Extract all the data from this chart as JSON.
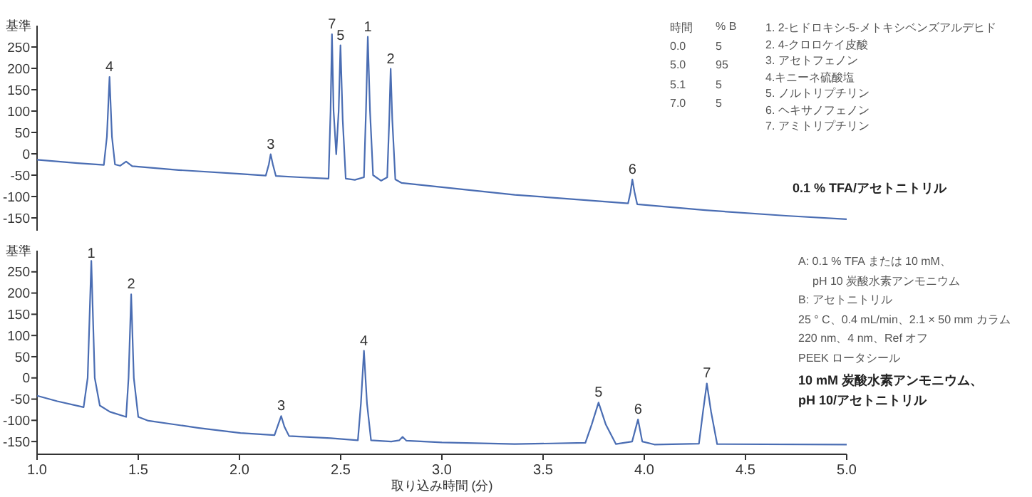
{
  "chart_data": [
    {
      "type": "line",
      "title": "0.1 % TFA/アセトニトリル",
      "ylabel": "基準",
      "xlim": [
        1,
        5
      ],
      "ylim": [
        -180,
        300
      ],
      "yticks": [
        250,
        200,
        150,
        100,
        50,
        0,
        -50,
        -100,
        -150
      ],
      "tick_labels": "y",
      "series": [
        {
          "color": "#4a6db3",
          "x": [
            1.0,
            1.2,
            1.33,
            1.345,
            1.358,
            1.37,
            1.385,
            1.41,
            1.44,
            1.47,
            1.7,
            2.0,
            2.13,
            2.145,
            2.154,
            2.165,
            2.18,
            2.3,
            2.44,
            2.45,
            2.457,
            2.465,
            2.478,
            2.49,
            2.499,
            2.51,
            2.525,
            2.57,
            2.615,
            2.625,
            2.634,
            2.645,
            2.66,
            2.7,
            2.73,
            2.74,
            2.747,
            2.755,
            2.77,
            2.8,
            3.0,
            3.36,
            3.7,
            3.92,
            3.932,
            3.941,
            3.952,
            3.965,
            4.3,
            4.7,
            5.0
          ],
          "values": [
            -14,
            -22,
            -26,
            40,
            180,
            40,
            -25,
            -28,
            -18,
            -29,
            -38,
            -47,
            -51,
            -25,
            -1,
            -25,
            -52,
            -55,
            -58,
            100,
            280,
            100,
            -1,
            100,
            254,
            80,
            -58,
            -61,
            -55,
            100,
            274,
            100,
            -50,
            -63,
            -55,
            80,
            199,
            80,
            -60,
            -68,
            -78,
            -96,
            -108,
            -116,
            -90,
            -60,
            -90,
            -118,
            -132,
            -145,
            -153
          ]
        }
      ],
      "annotations": [
        {
          "text": "4",
          "x": 1.358,
          "y": 180
        },
        {
          "text": "3",
          "x": 2.154,
          "y": -1
        },
        {
          "text": "7",
          "x": 2.457,
          "y": 280
        },
        {
          "text": "5",
          "x": 2.499,
          "y": 254
        },
        {
          "text": "1",
          "x": 2.634,
          "y": 274
        },
        {
          "text": "2",
          "x": 2.747,
          "y": 199
        },
        {
          "text": "6",
          "x": 3.941,
          "y": -60
        },
        "時間",
        "% B",
        "0.0",
        "5",
        "5.0",
        "95",
        "5.1",
        "5",
        "7.0",
        "5",
        "1. 2-ヒドロキシ-5-メトキシベンズアルデヒド",
        "2. 4-クロロケイ皮酸",
        "3. アセトフェノン",
        "4.キニーネ硫酸塩",
        "5. ノルトリプチリン",
        "6. ヘキサノフェノン",
        "7. アミトリプチリン"
      ]
    },
    {
      "type": "line",
      "title": "10 mM 炭酸水素アンモニウム、pH 10/アセトニトリル",
      "ylabel": "基準",
      "xlabel": "取り込み時間 (分)",
      "xlim": [
        1,
        5
      ],
      "ylim": [
        -180,
        300
      ],
      "xticks": [
        {
          "value": 1,
          "label": "1.0"
        },
        {
          "value": 1.5,
          "label": "1.5"
        },
        {
          "value": 2,
          "label": "2.0"
        },
        {
          "value": 2.5,
          "label": "2.5"
        },
        {
          "value": 3,
          "label": "3.0"
        },
        {
          "value": 3.5,
          "label": "3.5"
        },
        {
          "value": 4,
          "label": "4.0"
        },
        {
          "value": 4.5,
          "label": "4.5"
        },
        {
          "value": 5,
          "label": "5.0"
        }
      ],
      "yticks": [
        250,
        200,
        150,
        100,
        50,
        0,
        -50,
        -100,
        -150
      ],
      "series": [
        {
          "color": "#4a6db3",
          "x": [
            1.0,
            1.1,
            1.23,
            1.25,
            1.268,
            1.285,
            1.31,
            1.36,
            1.44,
            1.452,
            1.465,
            1.478,
            1.5,
            1.55,
            1.8,
            2.005,
            2.173,
            2.19,
            2.206,
            2.222,
            2.245,
            2.45,
            2.585,
            2.6,
            2.615,
            2.63,
            2.65,
            2.75,
            2.79,
            2.806,
            2.825,
            3.0,
            3.36,
            3.709,
            3.74,
            3.774,
            3.81,
            3.86,
            3.94,
            3.969,
            3.99,
            4.05,
            4.27,
            4.29,
            4.309,
            4.33,
            4.36,
            5.0
          ],
          "values": [
            -42,
            -55,
            -69,
            0,
            276,
            0,
            -65,
            -80,
            -92,
            0,
            197,
            0,
            -92,
            -101,
            -118,
            -130,
            -135,
            -112,
            -90,
            -115,
            -137,
            -142,
            -147,
            -60,
            64,
            -60,
            -147,
            -150,
            -147,
            -139,
            -148,
            -152,
            -156,
            -153,
            -110,
            -58,
            -110,
            -156,
            -150,
            -98,
            -150,
            -157,
            -155,
            -80,
            -13,
            -80,
            -156,
            -157
          ]
        }
      ],
      "annotations": [
        {
          "text": "1",
          "x": 1.268,
          "y": 276
        },
        {
          "text": "2",
          "x": 1.465,
          "y": 197
        },
        {
          "text": "3",
          "x": 2.206,
          "y": -90
        },
        {
          "text": "4",
          "x": 2.615,
          "y": 64
        },
        {
          "text": "5",
          "x": 3.774,
          "y": -58
        },
        {
          "text": "6",
          "x": 3.969,
          "y": -98
        },
        {
          "text": "7",
          "x": 4.309,
          "y": -13
        },
        "A: 0.1 % TFA または 10 mM、",
        "pH 10 炭酸水素アンモニウム",
        "B: アセトニトリル",
        "25 ° C、0.4 mL/min、2.1 × 50 mm カラム",
        "220 nm、4 nm、Ref オフ",
        "PEEK ロータシール"
      ]
    }
  ]
}
